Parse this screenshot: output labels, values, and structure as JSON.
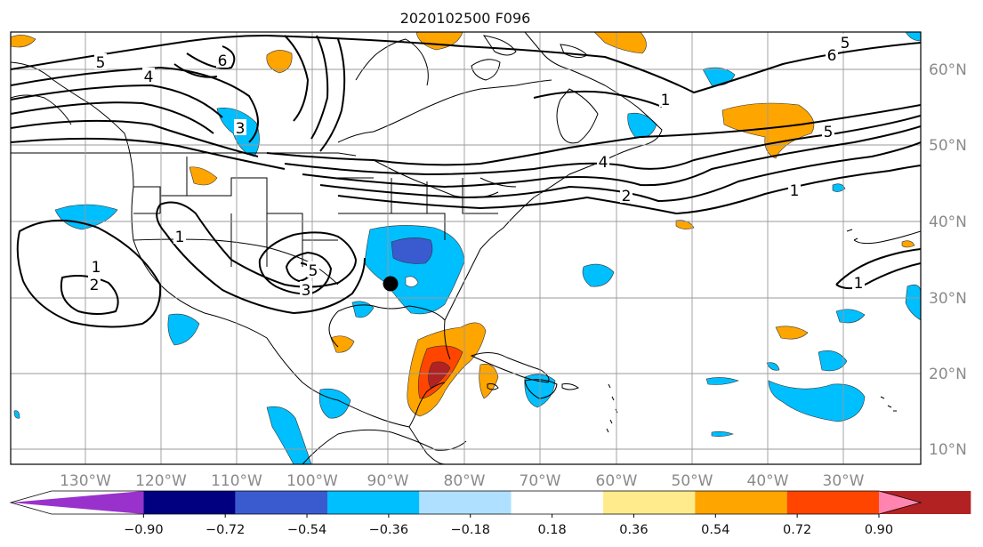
{
  "title": "2020102500 F096",
  "lon_labels": [
    "130°W",
    "120°W",
    "110°W",
    "100°W",
    "90°W",
    "80°W",
    "70°W",
    "60°W",
    "50°W",
    "40°W",
    "30°W"
  ],
  "lat_labels": [
    "60°N",
    "50°N",
    "40°N",
    "30°N",
    "20°N",
    "10°N"
  ],
  "colorbar": {
    "colors": [
      "#9932CC",
      "#000080",
      "#3A5BD0",
      "#00BFFF",
      "#B0E0FF",
      "#FFFFFF",
      "#FFEB8C",
      "#FFA500",
      "#FF4500",
      "#B22222",
      "#FF85B0"
    ],
    "tick_labels": [
      "−0.90",
      "−0.72",
      "−0.54",
      "−0.36",
      "−0.18",
      "0.18",
      "0.36",
      "0.54",
      "0.72",
      "0.90"
    ]
  },
  "contour_labels": [
    {
      "value": "5"
    },
    {
      "value": "4"
    },
    {
      "value": "3"
    },
    {
      "value": "6"
    },
    {
      "value": "5"
    },
    {
      "value": "6"
    },
    {
      "value": "5"
    },
    {
      "value": "4"
    },
    {
      "value": "2"
    },
    {
      "value": "1"
    },
    {
      "value": "1"
    },
    {
      "value": "1"
    },
    {
      "value": "2"
    },
    {
      "value": "1"
    },
    {
      "value": "3"
    },
    {
      "value": "5"
    },
    {
      "value": "1"
    }
  ]
}
